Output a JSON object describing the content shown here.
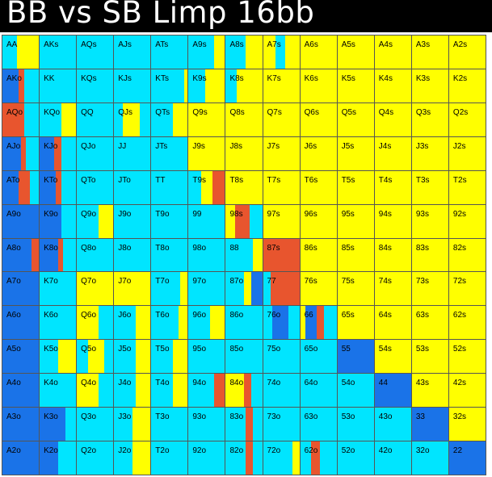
{
  "title": "BB vs SB Limp 16bb",
  "colors": {
    "fold": "#ffff00",
    "call": "#00e5ff",
    "raise": "#e8552e",
    "allin": "#1a73e8",
    "border": "#555555"
  },
  "rows": [
    [
      "AA",
      "AKs",
      "AQs",
      "AJs",
      "ATs",
      "A9s",
      "A8s",
      "A7s",
      "A6s",
      "A5s",
      "A4s",
      "A3s",
      "A2s"
    ],
    [
      "AKo",
      "KK",
      "KQs",
      "KJs",
      "KTs",
      "K9s",
      "K8s",
      "K7s",
      "K6s",
      "K5s",
      "K4s",
      "K3s",
      "K2s"
    ],
    [
      "AQo",
      "KQo",
      "QQ",
      "QJs",
      "QTs",
      "Q9s",
      "Q8s",
      "Q7s",
      "Q6s",
      "Q5s",
      "Q4s",
      "Q3s",
      "Q2s"
    ],
    [
      "AJo",
      "KJo",
      "QJo",
      "JJ",
      "JTs",
      "J9s",
      "J8s",
      "J7s",
      "J6s",
      "J5s",
      "J4s",
      "J3s",
      "J2s"
    ],
    [
      "ATo",
      "KTo",
      "QTo",
      "JTo",
      "TT",
      "T9s",
      "T8s",
      "T7s",
      "T6s",
      "T5s",
      "T4s",
      "T3s",
      "T2s"
    ],
    [
      "A9o",
      "K9o",
      "Q9o",
      "J9o",
      "T9o",
      "99",
      "98s",
      "97s",
      "96s",
      "95s",
      "94s",
      "93s",
      "92s"
    ],
    [
      "A8o",
      "K8o",
      "Q8o",
      "J8o",
      "T8o",
      "98o",
      "88",
      "87s",
      "86s",
      "85s",
      "84s",
      "83s",
      "82s"
    ],
    [
      "A7o",
      "K7o",
      "Q7o",
      "J7o",
      "T7o",
      "97o",
      "87o",
      "77",
      "76s",
      "75s",
      "74s",
      "73s",
      "72s"
    ],
    [
      "A6o",
      "K6o",
      "Q6o",
      "J6o",
      "T6o",
      "96o",
      "86o",
      "76o",
      "66",
      "65s",
      "64s",
      "63s",
      "62s"
    ],
    [
      "A5o",
      "K5o",
      "Q5o",
      "J5o",
      "T5o",
      "95o",
      "85o",
      "75o",
      "65o",
      "55",
      "54s",
      "53s",
      "52s"
    ],
    [
      "A4o",
      "K4o",
      "Q4o",
      "J4o",
      "T4o",
      "94o",
      "84o",
      "74o",
      "64o",
      "54o",
      "44",
      "43s",
      "42s"
    ],
    [
      "A3o",
      "K3o",
      "Q3o",
      "J3o",
      "T3o",
      "93o",
      "83o",
      "73o",
      "63o",
      "53o",
      "43o",
      "33",
      "32s"
    ],
    [
      "A2o",
      "K2o",
      "Q2o",
      "J2o",
      "T2o",
      "92o",
      "82o",
      "72o",
      "62o",
      "52o",
      "42o",
      "32o",
      "22"
    ]
  ],
  "mix": [
    [
      [
        [
          "call",
          0.4
        ],
        [
          "fold",
          0.6
        ]
      ],
      [
        [
          "call",
          1
        ]
      ],
      [
        [
          "call",
          1
        ]
      ],
      [
        [
          "call",
          1
        ]
      ],
      [
        [
          "call",
          1
        ]
      ],
      [
        [
          "call",
          0.7
        ],
        [
          "fold",
          0.3
        ]
      ],
      [
        [
          "call",
          0.55
        ],
        [
          "fold",
          0.45
        ]
      ],
      [
        [
          "fold",
          0.35
        ],
        [
          "call",
          0.25
        ],
        [
          "fold",
          0.4
        ]
      ],
      [
        [
          "fold",
          1
        ]
      ],
      [
        [
          "fold",
          1
        ]
      ],
      [
        [
          "fold",
          1
        ]
      ],
      [
        [
          "fold",
          1
        ]
      ],
      [
        [
          "fold",
          1
        ]
      ]
    ],
    [
      [
        [
          "allin",
          0.45
        ],
        [
          "raise",
          0.15
        ],
        [
          "call",
          0.4
        ]
      ],
      [
        [
          "call",
          1
        ]
      ],
      [
        [
          "call",
          1
        ]
      ],
      [
        [
          "call",
          1
        ]
      ],
      [
        [
          "call",
          0.9
        ],
        [
          "fold",
          0.1
        ]
      ],
      [
        [
          "call",
          0.45
        ],
        [
          "fold",
          0.55
        ]
      ],
      [
        [
          "call",
          0.3
        ],
        [
          "fold",
          0.7
        ]
      ],
      [
        [
          "fold",
          1
        ]
      ],
      [
        [
          "fold",
          1
        ]
      ],
      [
        [
          "fold",
          1
        ]
      ],
      [
        [
          "fold",
          1
        ]
      ],
      [
        [
          "fold",
          1
        ]
      ],
      [
        [
          "fold",
          1
        ]
      ]
    ],
    [
      [
        [
          "raise",
          0.6
        ],
        [
          "call",
          0.4
        ]
      ],
      [
        [
          "call",
          0.6
        ],
        [
          "fold",
          0.4
        ]
      ],
      [
        [
          "call",
          1
        ]
      ],
      [
        [
          "call",
          0.25
        ],
        [
          "fold",
          0.45
        ],
        [
          "call",
          0.3
        ]
      ],
      [
        [
          "call",
          0.6
        ],
        [
          "fold",
          0.4
        ]
      ],
      [
        [
          "fold",
          1
        ]
      ],
      [
        [
          "fold",
          1
        ]
      ],
      [
        [
          "fold",
          1
        ]
      ],
      [
        [
          "fold",
          1
        ]
      ],
      [
        [
          "fold",
          1
        ]
      ],
      [
        [
          "fold",
          1
        ]
      ],
      [
        [
          "fold",
          1
        ]
      ],
      [
        [
          "fold",
          1
        ]
      ]
    ],
    [
      [
        [
          "allin",
          0.5
        ],
        [
          "raise",
          0.15
        ],
        [
          "call",
          0.35
        ]
      ],
      [
        [
          "allin",
          0.4
        ],
        [
          "raise",
          0.2
        ],
        [
          "call",
          0.4
        ]
      ],
      [
        [
          "call",
          1
        ]
      ],
      [
        [
          "call",
          1
        ]
      ],
      [
        [
          "call",
          1
        ]
      ],
      [
        [
          "fold",
          1
        ]
      ],
      [
        [
          "fold",
          1
        ]
      ],
      [
        [
          "fold",
          1
        ]
      ],
      [
        [
          "fold",
          1
        ]
      ],
      [
        [
          "fold",
          1
        ]
      ],
      [
        [
          "fold",
          1
        ]
      ],
      [
        [
          "fold",
          1
        ]
      ],
      [
        [
          "fold",
          1
        ]
      ]
    ],
    [
      [
        [
          "allin",
          0.45
        ],
        [
          "raise",
          0.3
        ],
        [
          "call",
          0.25
        ]
      ],
      [
        [
          "allin",
          0.45
        ],
        [
          "raise",
          0.15
        ],
        [
          "call",
          0.4
        ]
      ],
      [
        [
          "call",
          1
        ]
      ],
      [
        [
          "call",
          1
        ]
      ],
      [
        [
          "call",
          1
        ]
      ],
      [
        [
          "call",
          0.35
        ],
        [
          "fold",
          0.3
        ],
        [
          "raise",
          0.35
        ]
      ],
      [
        [
          "fold",
          1
        ]
      ],
      [
        [
          "fold",
          1
        ]
      ],
      [
        [
          "fold",
          1
        ]
      ],
      [
        [
          "fold",
          1
        ]
      ],
      [
        [
          "fold",
          1
        ]
      ],
      [
        [
          "fold",
          1
        ]
      ],
      [
        [
          "fold",
          1
        ]
      ]
    ],
    [
      [
        [
          "allin",
          1
        ]
      ],
      [
        [
          "allin",
          0.6
        ],
        [
          "call",
          0.4
        ]
      ],
      [
        [
          "call",
          0.6
        ],
        [
          "fold",
          0.4
        ]
      ],
      [
        [
          "call",
          1
        ]
      ],
      [
        [
          "call",
          1
        ]
      ],
      [
        [
          "call",
          1
        ]
      ],
      [
        [
          "fold",
          0.25
        ],
        [
          "raise",
          0.4
        ],
        [
          "call",
          0.35
        ]
      ],
      [
        [
          "fold",
          1
        ]
      ],
      [
        [
          "fold",
          1
        ]
      ],
      [
        [
          "fold",
          1
        ]
      ],
      [
        [
          "fold",
          1
        ]
      ],
      [
        [
          "fold",
          1
        ]
      ],
      [
        [
          "fold",
          1
        ]
      ]
    ],
    [
      [
        [
          "allin",
          0.8
        ],
        [
          "raise",
          0.2
        ]
      ],
      [
        [
          "allin",
          0.5
        ],
        [
          "raise",
          0.15
        ],
        [
          "call",
          0.35
        ]
      ],
      [
        [
          "call",
          1
        ]
      ],
      [
        [
          "call",
          1
        ]
      ],
      [
        [
          "call",
          1
        ]
      ],
      [
        [
          "call",
          1
        ]
      ],
      [
        [
          "call",
          0.75
        ],
        [
          "fold",
          0.25
        ]
      ],
      [
        [
          "raise",
          1
        ]
      ],
      [
        [
          "fold",
          1
        ]
      ],
      [
        [
          "fold",
          1
        ]
      ],
      [
        [
          "fold",
          1
        ]
      ],
      [
        [
          "fold",
          1
        ]
      ],
      [
        [
          "fold",
          1
        ]
      ]
    ],
    [
      [
        [
          "allin",
          1
        ]
      ],
      [
        [
          "call",
          1
        ]
      ],
      [
        [
          "fold",
          1
        ]
      ],
      [
        [
          "fold",
          1
        ]
      ],
      [
        [
          "call",
          0.8
        ],
        [
          "fold",
          0.2
        ]
      ],
      [
        [
          "call",
          1
        ]
      ],
      [
        [
          "call",
          0.5
        ],
        [
          "fold",
          0.2
        ],
        [
          "allin",
          0.3
        ]
      ],
      [
        [
          "call",
          0.2
        ],
        [
          "raise",
          0.8
        ]
      ],
      [
        [
          "fold",
          1
        ]
      ],
      [
        [
          "fold",
          1
        ]
      ],
      [
        [
          "fold",
          1
        ]
      ],
      [
        [
          "fold",
          1
        ]
      ],
      [
        [
          "fold",
          1
        ]
      ]
    ],
    [
      [
        [
          "allin",
          1
        ]
      ],
      [
        [
          "call",
          1
        ]
      ],
      [
        [
          "fold",
          0.6
        ],
        [
          "call",
          0.4
        ]
      ],
      [
        [
          "call",
          0.6
        ],
        [
          "fold",
          0.4
        ]
      ],
      [
        [
          "call",
          0.75
        ],
        [
          "fold",
          0.25
        ]
      ],
      [
        [
          "call",
          0.6
        ],
        [
          "fold",
          0.4
        ]
      ],
      [
        [
          "call",
          1
        ]
      ],
      [
        [
          "call",
          0.25
        ],
        [
          "allin",
          0.45
        ],
        [
          "call",
          0.3
        ]
      ],
      [
        [
          "fold",
          0.15
        ],
        [
          "allin",
          0.3
        ],
        [
          "raise",
          0.2
        ],
        [
          "call",
          0.35
        ]
      ],
      [
        [
          "fold",
          1
        ]
      ],
      [
        [
          "fold",
          1
        ]
      ],
      [
        [
          "fold",
          1
        ]
      ],
      [
        [
          "fold",
          1
        ]
      ]
    ],
    [
      [
        [
          "allin",
          1
        ]
      ],
      [
        [
          "call",
          0.5
        ],
        [
          "fold",
          0.5
        ]
      ],
      [
        [
          "call",
          0.3
        ],
        [
          "fold",
          0.45
        ],
        [
          "call",
          0.25
        ]
      ],
      [
        [
          "call",
          0.6
        ],
        [
          "fold",
          0.4
        ]
      ],
      [
        [
          "call",
          0.6
        ],
        [
          "fold",
          0.4
        ]
      ],
      [
        [
          "call",
          1
        ]
      ],
      [
        [
          "call",
          1
        ]
      ],
      [
        [
          "call",
          1
        ]
      ],
      [
        [
          "call",
          1
        ]
      ],
      [
        [
          "allin",
          1
        ]
      ],
      [
        [
          "fold",
          1
        ]
      ],
      [
        [
          "fold",
          1
        ]
      ],
      [
        [
          "fold",
          1
        ]
      ]
    ],
    [
      [
        [
          "allin",
          1
        ]
      ],
      [
        [
          "call",
          1
        ]
      ],
      [
        [
          "fold",
          0.6
        ],
        [
          "call",
          0.4
        ]
      ],
      [
        [
          "call",
          0.6
        ],
        [
          "fold",
          0.4
        ]
      ],
      [
        [
          "call",
          0.6
        ],
        [
          "fold",
          0.4
        ]
      ],
      [
        [
          "call",
          0.7
        ],
        [
          "raise",
          0.3
        ]
      ],
      [
        [
          "fold",
          0.5
        ],
        [
          "raise",
          0.2
        ],
        [
          "call",
          0.3
        ]
      ],
      [
        [
          "call",
          1
        ]
      ],
      [
        [
          "call",
          1
        ]
      ],
      [
        [
          "call",
          1
        ]
      ],
      [
        [
          "allin",
          1
        ]
      ],
      [
        [
          "fold",
          1
        ]
      ],
      [
        [
          "fold",
          1
        ]
      ]
    ],
    [
      [
        [
          "allin",
          1
        ]
      ],
      [
        [
          "allin",
          0.7
        ],
        [
          "call",
          0.3
        ]
      ],
      [
        [
          "call",
          1
        ]
      ],
      [
        [
          "call",
          0.5
        ],
        [
          "fold",
          0.5
        ]
      ],
      [
        [
          "call",
          1
        ]
      ],
      [
        [
          "call",
          1
        ]
      ],
      [
        [
          "call",
          0.55
        ],
        [
          "raise",
          0.2
        ],
        [
          "call",
          0.25
        ]
      ],
      [
        [
          "call",
          1
        ]
      ],
      [
        [
          "call",
          1
        ]
      ],
      [
        [
          "call",
          1
        ]
      ],
      [
        [
          "call",
          1
        ]
      ],
      [
        [
          "allin",
          1
        ]
      ],
      [
        [
          "fold",
          1
        ]
      ]
    ],
    [
      [
        [
          "allin",
          1
        ]
      ],
      [
        [
          "allin",
          0.5
        ],
        [
          "call",
          0.5
        ]
      ],
      [
        [
          "call",
          1
        ]
      ],
      [
        [
          "call",
          0.5
        ],
        [
          "fold",
          0.5
        ]
      ],
      [
        [
          "call",
          1
        ]
      ],
      [
        [
          "call",
          1
        ]
      ],
      [
        [
          "call",
          0.55
        ],
        [
          "raise",
          0.2
        ],
        [
          "call",
          0.25
        ]
      ],
      [
        [
          "call",
          0.8
        ],
        [
          "fold",
          0.2
        ]
      ],
      [
        [
          "call",
          0.3
        ],
        [
          "raise",
          0.25
        ],
        [
          "call",
          0.45
        ]
      ],
      [
        [
          "call",
          1
        ]
      ],
      [
        [
          "call",
          1
        ]
      ],
      [
        [
          "call",
          1
        ]
      ],
      [
        [
          "allin",
          1
        ]
      ]
    ]
  ]
}
